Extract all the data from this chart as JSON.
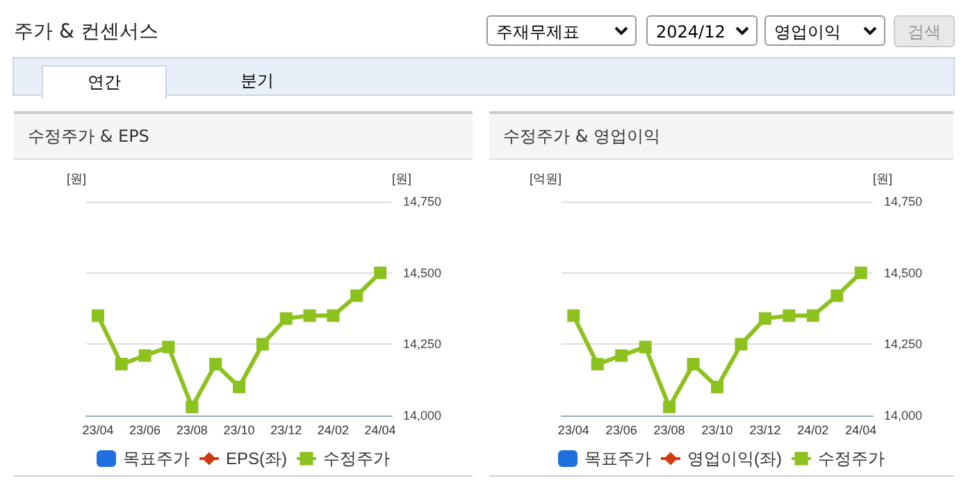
{
  "chart_data": [
    {
      "type": "other",
      "title": "주가 & 컨센서스",
      "annotations": [
        "주재무제표",
        "2024/12",
        "영업이익",
        "검색",
        "연간",
        "분기"
      ]
    },
    {
      "type": "line",
      "title": "수정주가 & EPS",
      "ylabel": "[원]",
      "y2label": "[원]",
      "categories": [
        "23/04",
        null,
        "23/06",
        null,
        "23/08",
        null,
        "23/10",
        null,
        "23/12",
        null,
        "24/02",
        null,
        "24/04"
      ],
      "series": [
        {
          "name": "목표주가",
          "type": "bar",
          "color": "#1f6fdf",
          "values": [
            null,
            null,
            null,
            null,
            null,
            null,
            null,
            null,
            null,
            null,
            null,
            null,
            null
          ]
        },
        {
          "name": "EPS(좌)",
          "type": "line",
          "marker": "diamond",
          "color": "#d03a10",
          "values": [
            null,
            null,
            null,
            null,
            null,
            null,
            null,
            null,
            null,
            null,
            null,
            null,
            null
          ]
        },
        {
          "name": "수정주가",
          "type": "line",
          "marker": "square",
          "axis": "y2",
          "color": "#8cc21e",
          "values": [
            14350,
            14180,
            14210,
            14240,
            14030,
            14180,
            14100,
            14250,
            14340,
            14350,
            14350,
            14420,
            14500
          ]
        }
      ],
      "y2lim": [
        14000,
        14750
      ],
      "y2ticks": [
        {
          "value": 14000,
          "label": "14,000"
        },
        {
          "value": 14250,
          "label": "14,250"
        },
        {
          "value": 14500,
          "label": "14,500"
        },
        {
          "value": 14750,
          "label": "14,750"
        }
      ],
      "grid": "y",
      "legend": "bottom"
    },
    {
      "type": "line",
      "title": "수정주가 & 영업이익",
      "ylabel": "[억원]",
      "y2label": "[원]",
      "categories": [
        "23/04",
        null,
        "23/06",
        null,
        "23/08",
        null,
        "23/10",
        null,
        "23/12",
        null,
        "24/02",
        null,
        "24/04"
      ],
      "series": [
        {
          "name": "목표주가",
          "type": "bar",
          "color": "#1f6fdf",
          "values": [
            null,
            null,
            null,
            null,
            null,
            null,
            null,
            null,
            null,
            null,
            null,
            null,
            null
          ]
        },
        {
          "name": "영업이익(좌)",
          "type": "line",
          "marker": "diamond",
          "color": "#d03a10",
          "values": [
            null,
            null,
            null,
            null,
            null,
            null,
            null,
            null,
            null,
            null,
            null,
            null,
            null
          ]
        },
        {
          "name": "수정주가",
          "type": "line",
          "marker": "square",
          "axis": "y2",
          "color": "#8cc21e",
          "values": [
            14350,
            14180,
            14210,
            14240,
            14030,
            14180,
            14100,
            14250,
            14340,
            14350,
            14350,
            14420,
            14500
          ]
        }
      ],
      "y2lim": [
        14000,
        14750
      ],
      "y2ticks": [
        {
          "value": 14000,
          "label": "14,000"
        },
        {
          "value": 14250,
          "label": "14,250"
        },
        {
          "value": 14500,
          "label": "14,500"
        },
        {
          "value": 14750,
          "label": "14,750"
        }
      ],
      "grid": "y",
      "legend": "bottom"
    }
  ]
}
